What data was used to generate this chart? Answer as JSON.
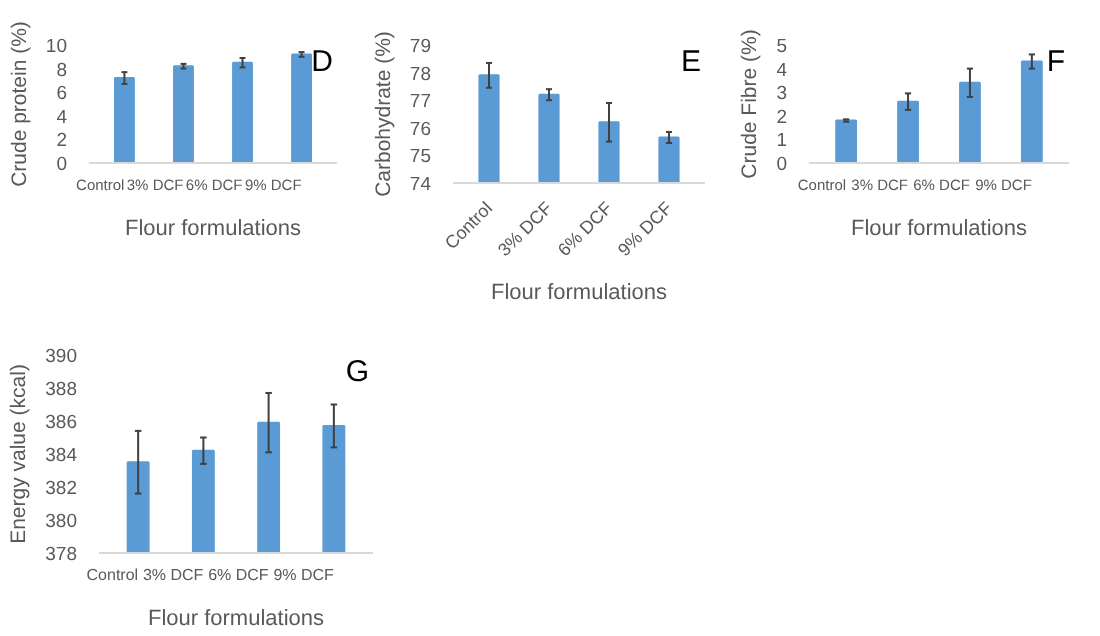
{
  "chart_data": [
    {
      "type": "bar",
      "categories": [
        "Control",
        "3% DCF",
        "6% DCF",
        "9% DCF"
      ],
      "values": [
        7.2,
        8.2,
        8.5,
        9.2
      ],
      "errors": [
        0.5,
        0.2,
        0.4,
        0.2
      ],
      "color": "#5b9bd5",
      "xlabel": "Flour formulations",
      "ylabel": "Crude protein (%)",
      "ylim": [
        0,
        10
      ],
      "yticks": [
        0,
        2,
        4,
        6,
        8,
        10
      ],
      "grid": false,
      "annotations": [
        "D"
      ]
    },
    {
      "type": "bar",
      "categories": [
        "Control",
        "3% DCF",
        "6% DCF",
        "9% DCF"
      ],
      "values": [
        77.9,
        77.2,
        76.2,
        75.65
      ],
      "errors": [
        0.45,
        0.2,
        0.7,
        0.2
      ],
      "color": "#5b9bd5",
      "xlabel": "Flour formulations",
      "ylabel": "Carbohydrate (%)",
      "ylim": [
        74,
        79
      ],
      "yticks": [
        74,
        75,
        76,
        77,
        78,
        79
      ],
      "grid": false,
      "annotations": [
        "E"
      ]
    },
    {
      "type": "bar",
      "categories": [
        "Control",
        "3% DCF",
        "6% DCF",
        "9% DCF"
      ],
      "values": [
        1.8,
        2.6,
        3.4,
        4.3
      ],
      "errors": [
        0.05,
        0.35,
        0.6,
        0.3
      ],
      "color": "#5b9bd5",
      "xlabel": "Flour formulations",
      "ylabel": "Crude Fibre (%)",
      "ylim": [
        0,
        5
      ],
      "yticks": [
        0,
        1,
        2,
        3,
        4,
        5
      ],
      "grid": false,
      "annotations": [
        "F"
      ]
    },
    {
      "type": "bar",
      "categories": [
        "Control",
        "3% DCF",
        "6% DCF",
        "9% DCF"
      ],
      "values": [
        383.5,
        384.2,
        385.9,
        385.7
      ],
      "errors": [
        1.9,
        0.8,
        1.8,
        1.3
      ],
      "color": "#5b9bd5",
      "xlabel": "Flour formulations",
      "ylabel": "Energy value (kcal)",
      "ylim": [
        378,
        390
      ],
      "yticks": [
        378,
        380,
        382,
        384,
        386,
        388,
        390
      ],
      "grid": false,
      "annotations": [
        "G"
      ]
    }
  ]
}
